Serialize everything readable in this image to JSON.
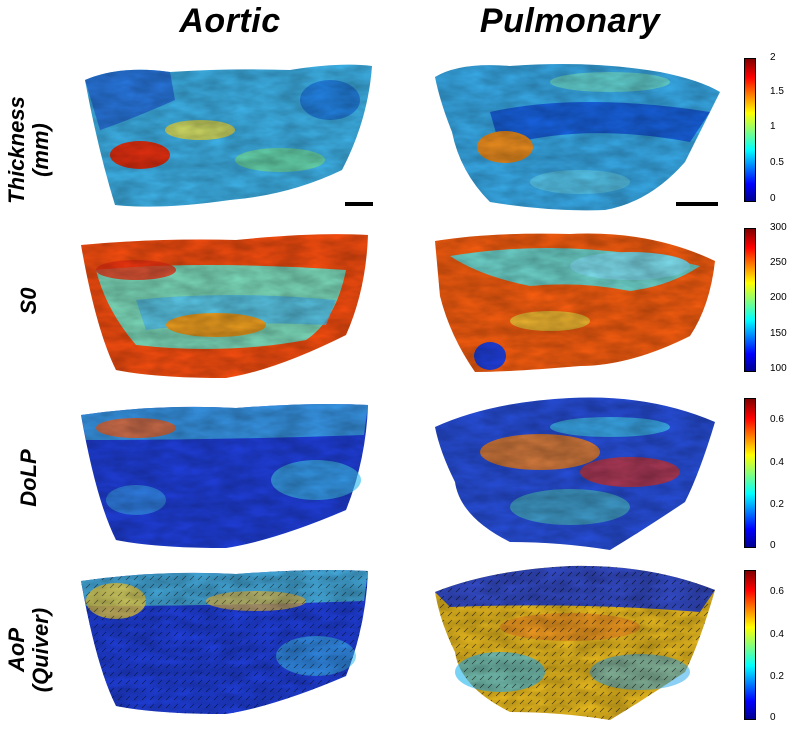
{
  "columns": {
    "aortic": "Aortic",
    "pulmonary": "Pulmonary"
  },
  "rows": {
    "thickness": "Thickness\n(mm)",
    "s0": "S0",
    "dolp": "DoLP",
    "aop": "AoP\n(Quiver)"
  },
  "colorbars": {
    "thickness": [
      "2",
      "1.5",
      "1",
      "0.5",
      "0"
    ],
    "s0": [
      "300",
      "250",
      "200",
      "150",
      "100"
    ],
    "dolp": [
      "0.6",
      "0.4",
      "0.2",
      "0"
    ],
    "aop": [
      "0.6",
      "0.4",
      "0.2",
      "0"
    ]
  },
  "colors": {
    "low": "#0010c8",
    "mid": "#40c8f0",
    "high": "#f03010"
  }
}
